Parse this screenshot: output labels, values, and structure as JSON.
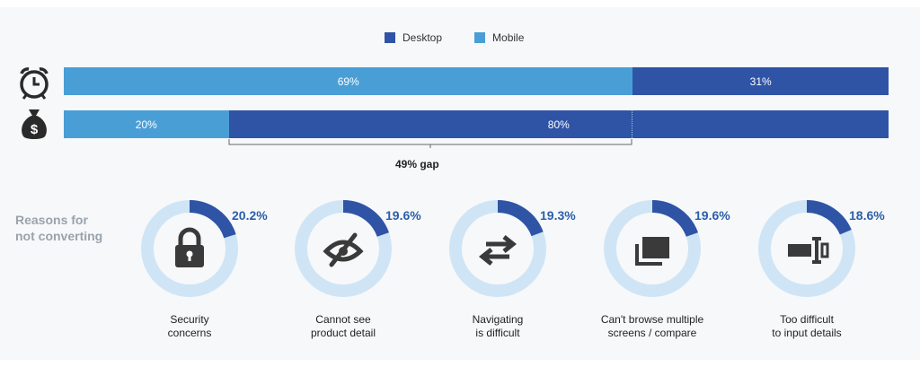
{
  "colors": {
    "desktop": "#2f54a6",
    "mobile": "#4a9ed6",
    "ring_bg": "#cfe5f6",
    "icon": "#3a3a3a"
  },
  "chart_data": [
    {
      "type": "bar",
      "orientation": "horizontal",
      "stacked": true,
      "legend": [
        "Desktop",
        "Mobile"
      ],
      "categories": [
        "alarm-clock-icon",
        "money-bag-icon"
      ],
      "series": [
        {
          "name": "Mobile",
          "values": [
            69,
            20
          ],
          "labels": [
            "69%",
            "20%"
          ]
        },
        {
          "name": "Desktop",
          "values": [
            31,
            80
          ],
          "labels": [
            "31%",
            "80%"
          ]
        }
      ],
      "annotation": "49% gap"
    },
    {
      "type": "pie",
      "title": "Reasons for\nnot converting",
      "categories": [
        "Security\nconcerns",
        "Cannot see\nproduct detail",
        "Navigating\nis difficult",
        "Can't browse multiple\nscreens / compare",
        "Too difficult\nto input details"
      ],
      "values": [
        20.2,
        19.6,
        19.3,
        19.6,
        18.6
      ],
      "labels": [
        "20.2%",
        "19.6%",
        "19.3%",
        "19.6%",
        "18.6%"
      ],
      "icons": [
        "lock-icon",
        "eye-slash-icon",
        "arrows-icon",
        "screens-icon",
        "input-cursor-icon"
      ]
    }
  ]
}
